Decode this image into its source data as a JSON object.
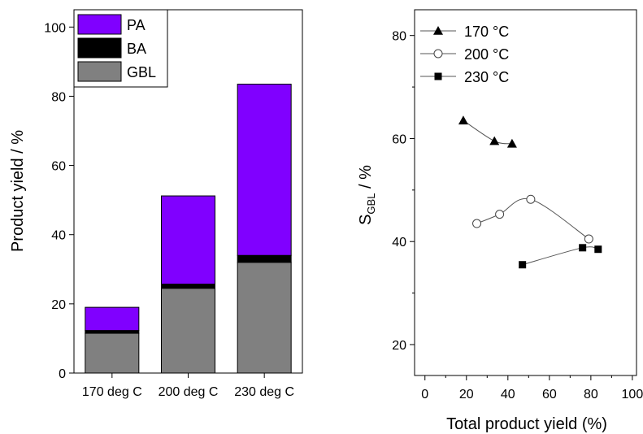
{
  "chart_data": [
    {
      "type": "bar",
      "stacked": true,
      "categories": [
        "170 deg C",
        "200 deg C",
        "230 deg C"
      ],
      "series": [
        {
          "name": "GBL",
          "values": [
            11.5,
            24.5,
            32
          ],
          "color": "#808080"
        },
        {
          "name": "BA",
          "values": [
            0.8,
            1.2,
            2
          ],
          "color": "#000000"
        },
        {
          "name": "PA",
          "values": [
            6.7,
            25.5,
            49.5
          ],
          "color": "#8000ff"
        }
      ],
      "ylabel": "Product yield / %",
      "ylim": [
        0,
        105
      ],
      "yticks": [
        0,
        20,
        40,
        60,
        80,
        100
      ],
      "grid": false,
      "legend_position": "top-left"
    },
    {
      "type": "scatter",
      "xlabel": "Total product yield (%)",
      "ylabel_main": "S",
      "ylabel_sub": "GBL",
      "ylabel_suffix": " / %",
      "xlim": [
        -5,
        102
      ],
      "ylim": [
        14,
        85
      ],
      "xticks": [
        0,
        20,
        40,
        60,
        80,
        100
      ],
      "yticks": [
        20,
        40,
        60,
        80
      ],
      "grid": false,
      "legend_position": "top-left",
      "series": [
        {
          "name": "170 °C",
          "marker": "triangle-filled",
          "x": [
            18.5,
            33.5,
            42
          ],
          "y": [
            63.5,
            59.5,
            59
          ]
        },
        {
          "name": "200 °C",
          "marker": "circle-open",
          "x": [
            25,
            36,
            51,
            79
          ],
          "y": [
            43.5,
            45.3,
            48.2,
            40.5
          ]
        },
        {
          "name": "230 °C",
          "marker": "square-filled",
          "x": [
            47,
            76,
            83.5
          ],
          "y": [
            35.5,
            38.8,
            38.5
          ]
        }
      ]
    }
  ]
}
